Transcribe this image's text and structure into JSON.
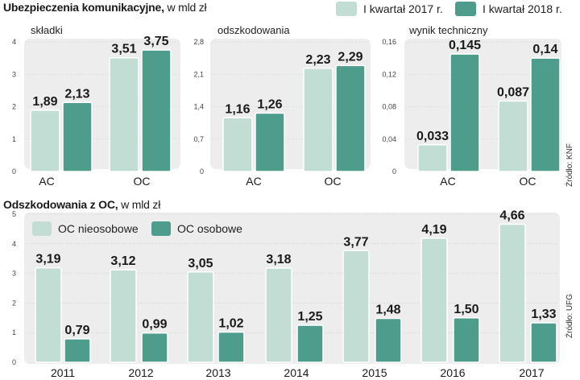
{
  "colors": {
    "light": "#c2ddd4",
    "dark": "#4d9c8c",
    "panel": "#ededed",
    "grid": "#c9c9c9",
    "text": "#1a1a1a"
  },
  "top": {
    "title": "Ubezpieczenia komunikacyjne,",
    "unit": " w mld zł",
    "legend": [
      "I kwartał 2017 r.",
      "I kwartał 2018 r."
    ],
    "source": "Źródło: KNF"
  },
  "bottom": {
    "title": "Odszkodowania z OC,",
    "unit": " w mld zł",
    "legend": [
      "OC nieosobowe",
      "OC osobowe"
    ],
    "source": "Źródło: UFG"
  },
  "chart_data": [
    {
      "type": "bar",
      "title": "składki",
      "categories": [
        "AC",
        "OC"
      ],
      "yticks": [
        "4",
        "3",
        "2",
        "1",
        "0"
      ],
      "ylim": [
        0,
        4
      ],
      "series": [
        {
          "name": "I kwartał 2017 r.",
          "values": [
            1.89,
            3.51
          ],
          "labels": [
            "1,89",
            "3,51"
          ]
        },
        {
          "name": "I kwartał 2018 r.",
          "values": [
            2.13,
            3.75
          ],
          "labels": [
            "2,13",
            "3,75"
          ]
        }
      ]
    },
    {
      "type": "bar",
      "title": "odszkodowania",
      "categories": [
        "AC",
        "OC"
      ],
      "yticks": [
        "2,8",
        "2,1",
        "1,4",
        "0,7",
        "0"
      ],
      "ylim": [
        0,
        2.8
      ],
      "series": [
        {
          "name": "I kwartał 2017 r.",
          "values": [
            1.16,
            2.23
          ],
          "labels": [
            "1,16",
            "2,23"
          ]
        },
        {
          "name": "I kwartał 2018 r.",
          "values": [
            1.26,
            2.29
          ],
          "labels": [
            "1,26",
            "2,29"
          ]
        }
      ]
    },
    {
      "type": "bar",
      "title": "wynik techniczny",
      "categories": [
        "AC",
        "OC"
      ],
      "yticks": [
        "0,16",
        "0,12",
        "0,08",
        "0,04",
        "0"
      ],
      "ylim": [
        0,
        0.16
      ],
      "series": [
        {
          "name": "I kwartał 2017 r.",
          "values": [
            0.033,
            0.087
          ],
          "labels": [
            "0,033",
            "0,087"
          ]
        },
        {
          "name": "I kwartał 2018 r.",
          "values": [
            0.145,
            0.14
          ],
          "labels": [
            "0,145",
            "0,14"
          ]
        }
      ]
    },
    {
      "type": "bar",
      "title": "Odszkodowania z OC, w mld zł",
      "categories": [
        "2011",
        "2012",
        "2013",
        "2014",
        "2015",
        "2016",
        "2017"
      ],
      "yticks": [
        "5",
        "4",
        "3",
        "2",
        "1",
        "0"
      ],
      "ylim": [
        0,
        5
      ],
      "series": [
        {
          "name": "OC nieosobowe",
          "values": [
            3.19,
            3.12,
            3.05,
            3.18,
            3.77,
            4.19,
            4.66
          ],
          "labels": [
            "3,19",
            "3,12",
            "3,05",
            "3,18",
            "3,77",
            "4,19",
            "4,66"
          ]
        },
        {
          "name": "OC osobowe",
          "values": [
            0.79,
            0.99,
            1.02,
            1.25,
            1.48,
            1.5,
            1.33
          ],
          "labels": [
            "0,79",
            "0,99",
            "1,02",
            "1,25",
            "1,48",
            "1,50",
            "1,33"
          ]
        }
      ]
    }
  ]
}
